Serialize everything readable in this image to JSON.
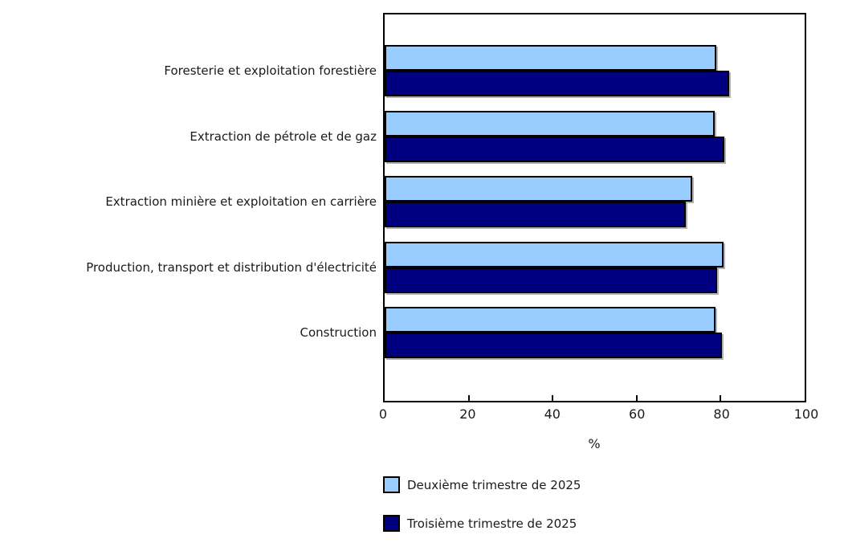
{
  "chart_data": {
    "type": "bar",
    "orientation": "horizontal",
    "title": "",
    "xlabel": "%",
    "xlim": [
      0,
      100
    ],
    "xticks": [
      0,
      20,
      40,
      60,
      80,
      100
    ],
    "grid": false,
    "background_color": "#FFFFFF",
    "axis_color": "#000000",
    "bar_border_color": "#000000",
    "categories": [
      "Foresterie et exploitation forestière",
      "Extraction de pétrole et de gaz",
      "Extraction minière et exploitation en carrière",
      "Production, transport et distribution d'électricité",
      "Construction"
    ],
    "series": [
      {
        "name": "Deuxième trimestre de 2025",
        "color": "#99CCFF",
        "values": [
          79.0,
          78.5,
          73.2,
          80.6,
          78.8
        ]
      },
      {
        "name": "Troisième trimestre de 2025",
        "color": "#000080",
        "values": [
          82.0,
          80.8,
          71.7,
          79.1,
          80.3
        ]
      }
    ],
    "legend_position": "bottom-left"
  }
}
